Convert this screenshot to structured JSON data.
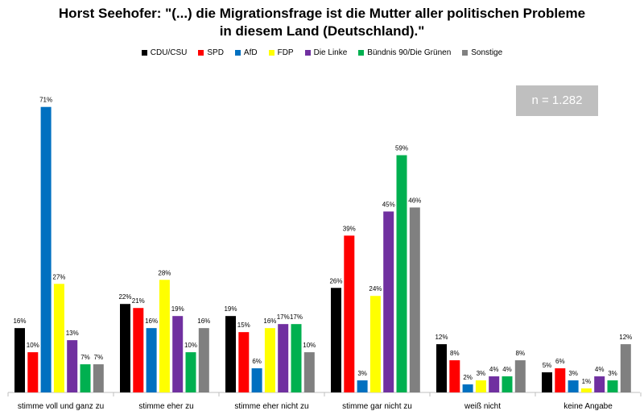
{
  "chart_data": {
    "type": "bar",
    "title_line1": "Horst Seehofer: \"(...) die Migrationsfrage ist die Mutter aller politischen Probleme",
    "title_line2": "in diesem Land (Deutschland).\"",
    "annotation": "n = 1.282",
    "ylim": [
      0,
      75
    ],
    "grid": false,
    "legend_position": "top",
    "categories": [
      "stimme voll und ganz zu",
      "stimme eher zu",
      "stimme eher nicht zu",
      "stimme gar nicht zu",
      "weiß nicht",
      "keine Angabe"
    ],
    "series": [
      {
        "name": "CDU/CSU",
        "color": "#000000",
        "values": [
          16,
          22,
          19,
          26,
          12,
          5
        ]
      },
      {
        "name": "SPD",
        "color": "#ff0000",
        "values": [
          10,
          21,
          15,
          39,
          8,
          6
        ]
      },
      {
        "name": "AfD",
        "color": "#0070c0",
        "values": [
          71,
          16,
          6,
          3,
          2,
          3
        ]
      },
      {
        "name": "FDP",
        "color": "#ffff00",
        "values": [
          27,
          28,
          16,
          24,
          3,
          1
        ]
      },
      {
        "name": "Die Linke",
        "color": "#7030a0",
        "values": [
          13,
          19,
          17,
          45,
          4,
          4
        ]
      },
      {
        "name": "Bündnis 90/Die Grünen",
        "color": "#00b050",
        "values": [
          7,
          10,
          17,
          59,
          4,
          3
        ]
      },
      {
        "name": "Sonstige",
        "color": "#808080",
        "values": [
          7,
          16,
          10,
          46,
          8,
          12
        ]
      }
    ]
  }
}
